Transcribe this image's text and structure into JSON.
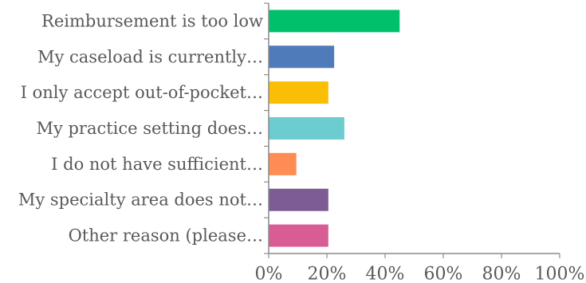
{
  "chart_data": {
    "type": "bar",
    "orientation": "horizontal",
    "title": "",
    "xlabel": "",
    "ylabel": "",
    "categories": [
      "Reimbursement is too low",
      "My caseload is currently…",
      "I only accept out-of-pocket…",
      "My practice setting does…",
      "I do not have sufficient…",
      "My specialty area does not…",
      "Other reason (please…"
    ],
    "values": [
      45,
      22.5,
      20.5,
      26,
      9.5,
      20.5,
      20.5
    ],
    "bar_colors": [
      "#00c06c",
      "#4f7bbb",
      "#fbbe07",
      "#6ccccf",
      "#ff8c52",
      "#7d5b93",
      "#d95d95"
    ],
    "xlim": [
      0,
      100
    ],
    "xticks": [
      0,
      20,
      40,
      60,
      80,
      100
    ],
    "xtick_labels": [
      "0%",
      "20%",
      "40%",
      "60%",
      "80%",
      "100%"
    ],
    "grid": false,
    "legend": "none",
    "axis_color": "#8c8c8c"
  }
}
